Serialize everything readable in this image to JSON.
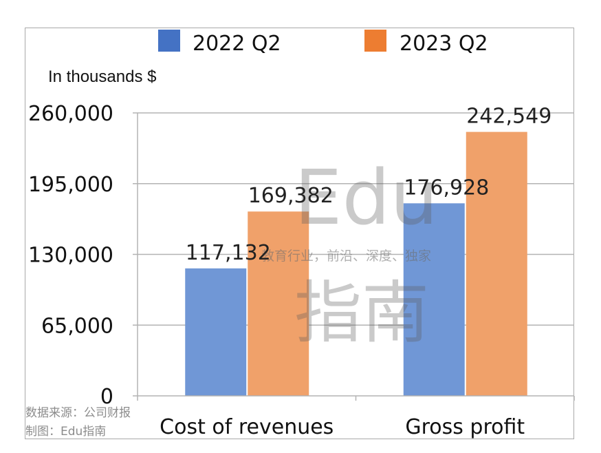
{
  "chart_data": {
    "type": "bar",
    "unit_label": "In thousands $",
    "categories": [
      "Cost of revenues",
      "Gross profit"
    ],
    "series": [
      {
        "name": "2022 Q2",
        "color": "#4472C4",
        "values": [
          117132,
          176928
        ]
      },
      {
        "name": "2023 Q2",
        "color": "#ED7D31",
        "values": [
          169382,
          242549
        ]
      }
    ],
    "data_labels": {
      "2022 Q2": [
        "117,132",
        "176,928"
      ],
      "2023 Q2": [
        "169,382",
        "242,549"
      ]
    },
    "y_ticks": [
      0,
      65000,
      130000,
      195000,
      260000
    ],
    "y_tick_labels": [
      "0",
      "65,000",
      "130,000",
      "195,000",
      "260,000"
    ],
    "ylim": [
      0,
      260000
    ],
    "grid": true,
    "legend_position": "top"
  },
  "watermark": {
    "brand": "Edu",
    "brand_cn": "指南",
    "tagline": "教育行业，前沿、深度、独家"
  },
  "source": {
    "line1": "数据来源：公司财报",
    "line2": "制图：Edu指南"
  }
}
